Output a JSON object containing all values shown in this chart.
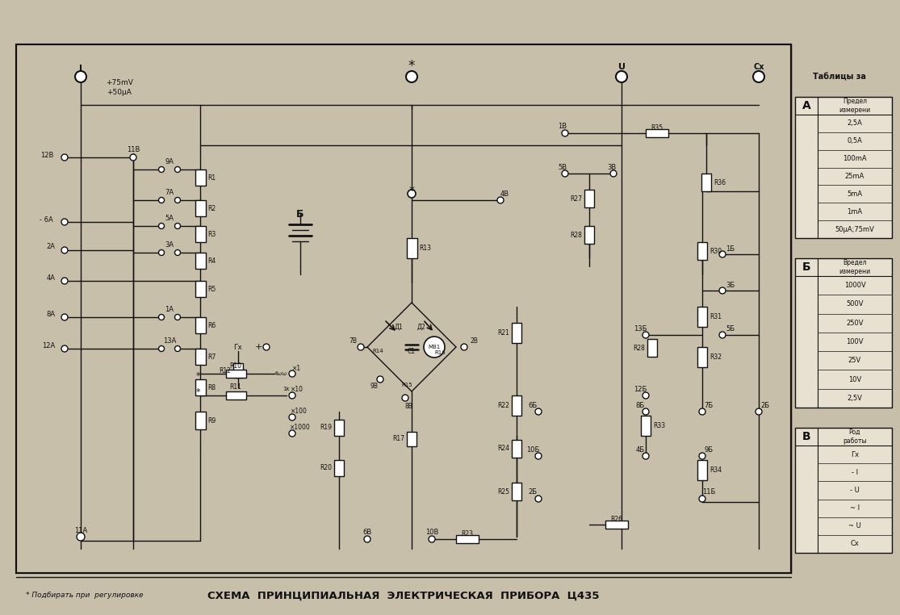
{
  "title": "СХЕМА  ПРИНЦИПИАЛЬНАЯ  ЭЛЕКТРИЧЕСКАЯ  ПРИБОРА  Ц435",
  "footnote": "* Подбирать при  регулировке",
  "bg_color": "#c8bfaa",
  "line_color": "#111111",
  "table_A_header": "Предел\nизмерени",
  "table_A_rows": [
    "2,5А",
    "0,5А",
    "100mА",
    "25mА",
    "5mА",
    "1mА",
    "50µА;75mV"
  ],
  "table_A_label": "А",
  "table_B_header": "Вредел\nизмерени",
  "table_B_rows": [
    "1000V",
    "500V",
    "250V",
    "100V",
    "25V",
    "10V",
    "2,5V"
  ],
  "table_B_label": "Б",
  "table_C_header": "Род\nработы",
  "table_C_rows": [
    "Гх",
    "- I",
    "- U",
    "~ I",
    "~ U",
    "Сх"
  ],
  "table_C_label": "В",
  "tables_title": "Таблицы за"
}
